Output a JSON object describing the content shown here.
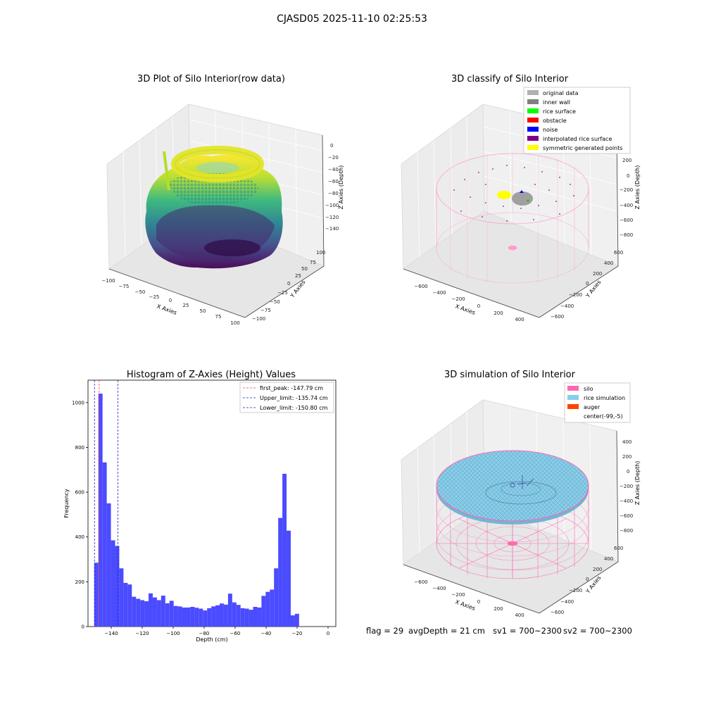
{
  "suptitle": "CJASD05 2025-11-10 02:25:53",
  "status_line": {
    "flag": "flag = 29",
    "avg_depth": "avgDepth = 21 cm",
    "sv1": "sv1 = 700~2300",
    "sv2": "sv2 = 700~2300"
  },
  "colors": {
    "bar": "#4b4bff",
    "peak": "#ff3b3b",
    "limit": "#2020c0",
    "silo": "#ff69b4",
    "rice_sim": "#87ceeb",
    "auger": "#ff4500",
    "original": "#b0b0b0",
    "inner_wall": "#808080",
    "rice_surface": "#00ff00",
    "obstacle": "#ff0000",
    "noise": "#0000ff",
    "interpolated": "#800080",
    "symmetric": "#ffff00"
  },
  "chart_data": [
    {
      "type": "scatter",
      "title": "3D Plot of Silo Interior(row data)",
      "xlabel": "X Axies",
      "ylabel": "Y Axies",
      "zlabel": "Z Axies (Depth)",
      "x_ticks": [
        "−100",
        "−75",
        "−50",
        "−25",
        "0",
        "25",
        "50",
        "75",
        "100"
      ],
      "y_ticks": [
        "100",
        "75",
        "50",
        "25",
        "0",
        "−25",
        "−50",
        "−75",
        "−100"
      ],
      "z_ticks": [
        "0",
        "−20",
        "−40",
        "−60",
        "−80",
        "−100",
        "−120",
        "−140"
      ],
      "colormap": "viridis"
    },
    {
      "type": "scatter",
      "title": "3D classify of Silo Interior",
      "xlabel": "X Axies",
      "ylabel": "Y Axies",
      "zlabel": "Z Axies (Depth)",
      "x_ticks": [
        "−600",
        "−400",
        "−200",
        "0",
        "200",
        "400"
      ],
      "y_ticks": [
        "600",
        "400",
        "200",
        "0",
        "−200",
        "−400",
        "−600"
      ],
      "z_ticks": [
        "200",
        "0",
        "−200",
        "−400",
        "−600",
        "−800"
      ],
      "legend": [
        "original data",
        "inner wall",
        "rice surface",
        "obstacle",
        "noise",
        "interpolated rice surface",
        "symmetric generated points"
      ]
    },
    {
      "type": "bar",
      "title": "Histogram of Z-Axies (Height) Values",
      "xlabel": "Depth (cm)",
      "ylabel": "Frequency",
      "xlim": [
        -155,
        5
      ],
      "ylim": [
        0,
        1100
      ],
      "bin_width": 2.7,
      "bin_start": -151,
      "x_ticks": [
        -140,
        -120,
        -100,
        -80,
        -60,
        -40,
        -20,
        0
      ],
      "y_ticks": [
        0,
        200,
        400,
        600,
        800,
        1000
      ],
      "values": [
        285,
        1040,
        733,
        550,
        385,
        360,
        260,
        195,
        188,
        133,
        124,
        118,
        113,
        148,
        130,
        118,
        138,
        104,
        115,
        92,
        90,
        85,
        85,
        88,
        84,
        80,
        72,
        82,
        90,
        95,
        103,
        98,
        147,
        108,
        97,
        82,
        80,
        75,
        88,
        85,
        137,
        155,
        165,
        260,
        485,
        682,
        428,
        50,
        57
      ],
      "vlines": [
        {
          "label": "first_peak: -147.79 cm",
          "x": -147.79,
          "color_key": "peak"
        },
        {
          "label": "Upper_limit: -135.74 cm",
          "x": -135.74,
          "color_key": "limit"
        },
        {
          "label": "Lower_limit: -150.80 cm",
          "x": -150.8,
          "color_key": "limit"
        }
      ],
      "legend_position": "top-right"
    },
    {
      "type": "scatter",
      "title": "3D simulation of Silo Interior",
      "xlabel": "X Axies",
      "ylabel": "Y Axies",
      "zlabel": "Z Axies (Depth)",
      "x_ticks": [
        "−600",
        "−400",
        "−200",
        "0",
        "200",
        "400"
      ],
      "y_ticks": [
        "600",
        "400",
        "200",
        "0",
        "−200",
        "−400",
        "−600"
      ],
      "z_ticks": [
        "400",
        "200",
        "0",
        "−200",
        "−400",
        "−600",
        "−800"
      ],
      "legend": [
        "silo",
        "rice simulation",
        "auger",
        "center(-99,-5)"
      ]
    }
  ]
}
